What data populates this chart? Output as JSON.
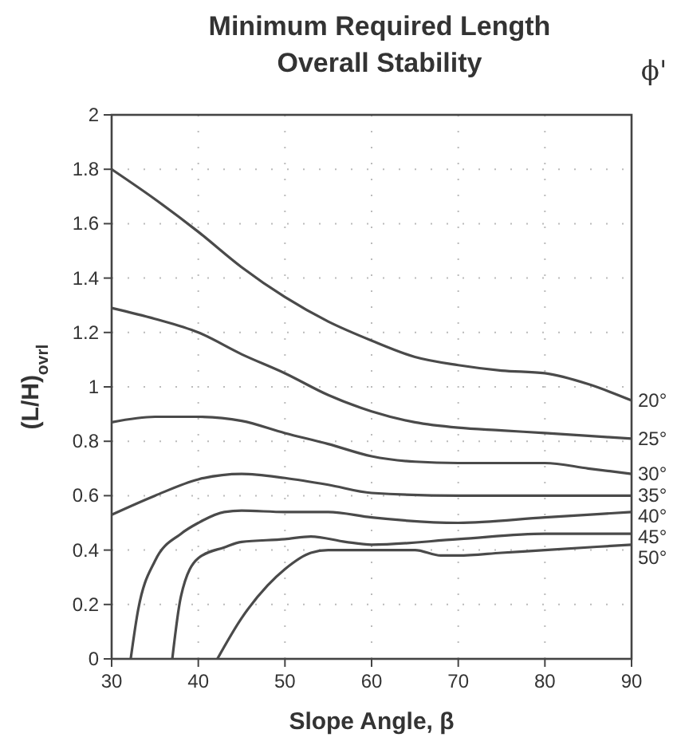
{
  "chart_data": {
    "type": "line",
    "title": "Minimum Required Length\nOverall Stability",
    "xlabel": "Slope Angle, β",
    "ylabel": "(L/H)$_{ovrl}$",
    "legend_title": "ϕ'",
    "xlim": [
      30,
      90
    ],
    "ylim": [
      0,
      2
    ],
    "xticks": [
      30,
      40,
      50,
      60,
      70,
      80,
      90
    ],
    "yticks": [
      0,
      0.2,
      0.4,
      0.6,
      0.8,
      1,
      1.2,
      1.4,
      1.6,
      1.8,
      2
    ],
    "grid": true,
    "legend": false,
    "line_style": "solid",
    "marker": "none",
    "series": [
      {
        "name": "20°",
        "color": "#4a4a4a",
        "x": [
          30,
          35,
          40,
          45,
          50,
          55,
          60,
          65,
          70,
          75,
          80,
          85,
          90
        ],
        "values": [
          1.8,
          1.69,
          1.57,
          1.44,
          1.33,
          1.24,
          1.17,
          1.11,
          1.08,
          1.06,
          1.05,
          1.01,
          0.95
        ]
      },
      {
        "name": "25°",
        "color": "#4a4a4a",
        "x": [
          30,
          35,
          40,
          45,
          50,
          55,
          60,
          65,
          70,
          75,
          80,
          85,
          90
        ],
        "values": [
          1.29,
          1.25,
          1.2,
          1.12,
          1.05,
          0.97,
          0.91,
          0.87,
          0.85,
          0.84,
          0.83,
          0.82,
          0.81
        ]
      },
      {
        "name": "30°",
        "color": "#4a4a4a",
        "x": [
          30,
          35,
          40,
          45,
          50,
          55,
          60,
          65,
          70,
          80,
          85,
          90
        ],
        "values": [
          0.87,
          0.89,
          0.89,
          0.875,
          0.83,
          0.79,
          0.745,
          0.725,
          0.72,
          0.72,
          0.7,
          0.68
        ]
      },
      {
        "name": "35°",
        "color": "#4a4a4a",
        "x": [
          30,
          35,
          40,
          45,
          50,
          55,
          60,
          70,
          80,
          90
        ],
        "values": [
          0.53,
          0.6,
          0.66,
          0.68,
          0.665,
          0.64,
          0.61,
          0.6,
          0.6,
          0.6
        ]
      },
      {
        "name": "40°",
        "color": "#4a4a4a",
        "x": [
          32.2,
          33,
          35,
          38,
          40,
          43,
          45,
          50,
          55,
          60,
          70,
          80,
          90
        ],
        "values": [
          0,
          0.17,
          0.36,
          0.46,
          0.5,
          0.54,
          0.545,
          0.54,
          0.54,
          0.52,
          0.5,
          0.52,
          0.54
        ]
      },
      {
        "name": "45°",
        "color": "#4a4a4a",
        "x": [
          37,
          38,
          40,
          43,
          45,
          50,
          53,
          57,
          60,
          70,
          80,
          90
        ],
        "values": [
          0,
          0.23,
          0.37,
          0.41,
          0.43,
          0.44,
          0.45,
          0.43,
          0.42,
          0.44,
          0.46,
          0.46
        ]
      },
      {
        "name": "50°",
        "color": "#4a4a4a",
        "x": [
          42.2,
          45,
          48,
          50,
          53,
          55,
          60,
          65,
          68,
          70,
          75,
          80,
          90
        ],
        "values": [
          0,
          0.15,
          0.27,
          0.33,
          0.39,
          0.4,
          0.4,
          0.4,
          0.38,
          0.38,
          0.39,
          0.4,
          0.42
        ]
      }
    ]
  }
}
